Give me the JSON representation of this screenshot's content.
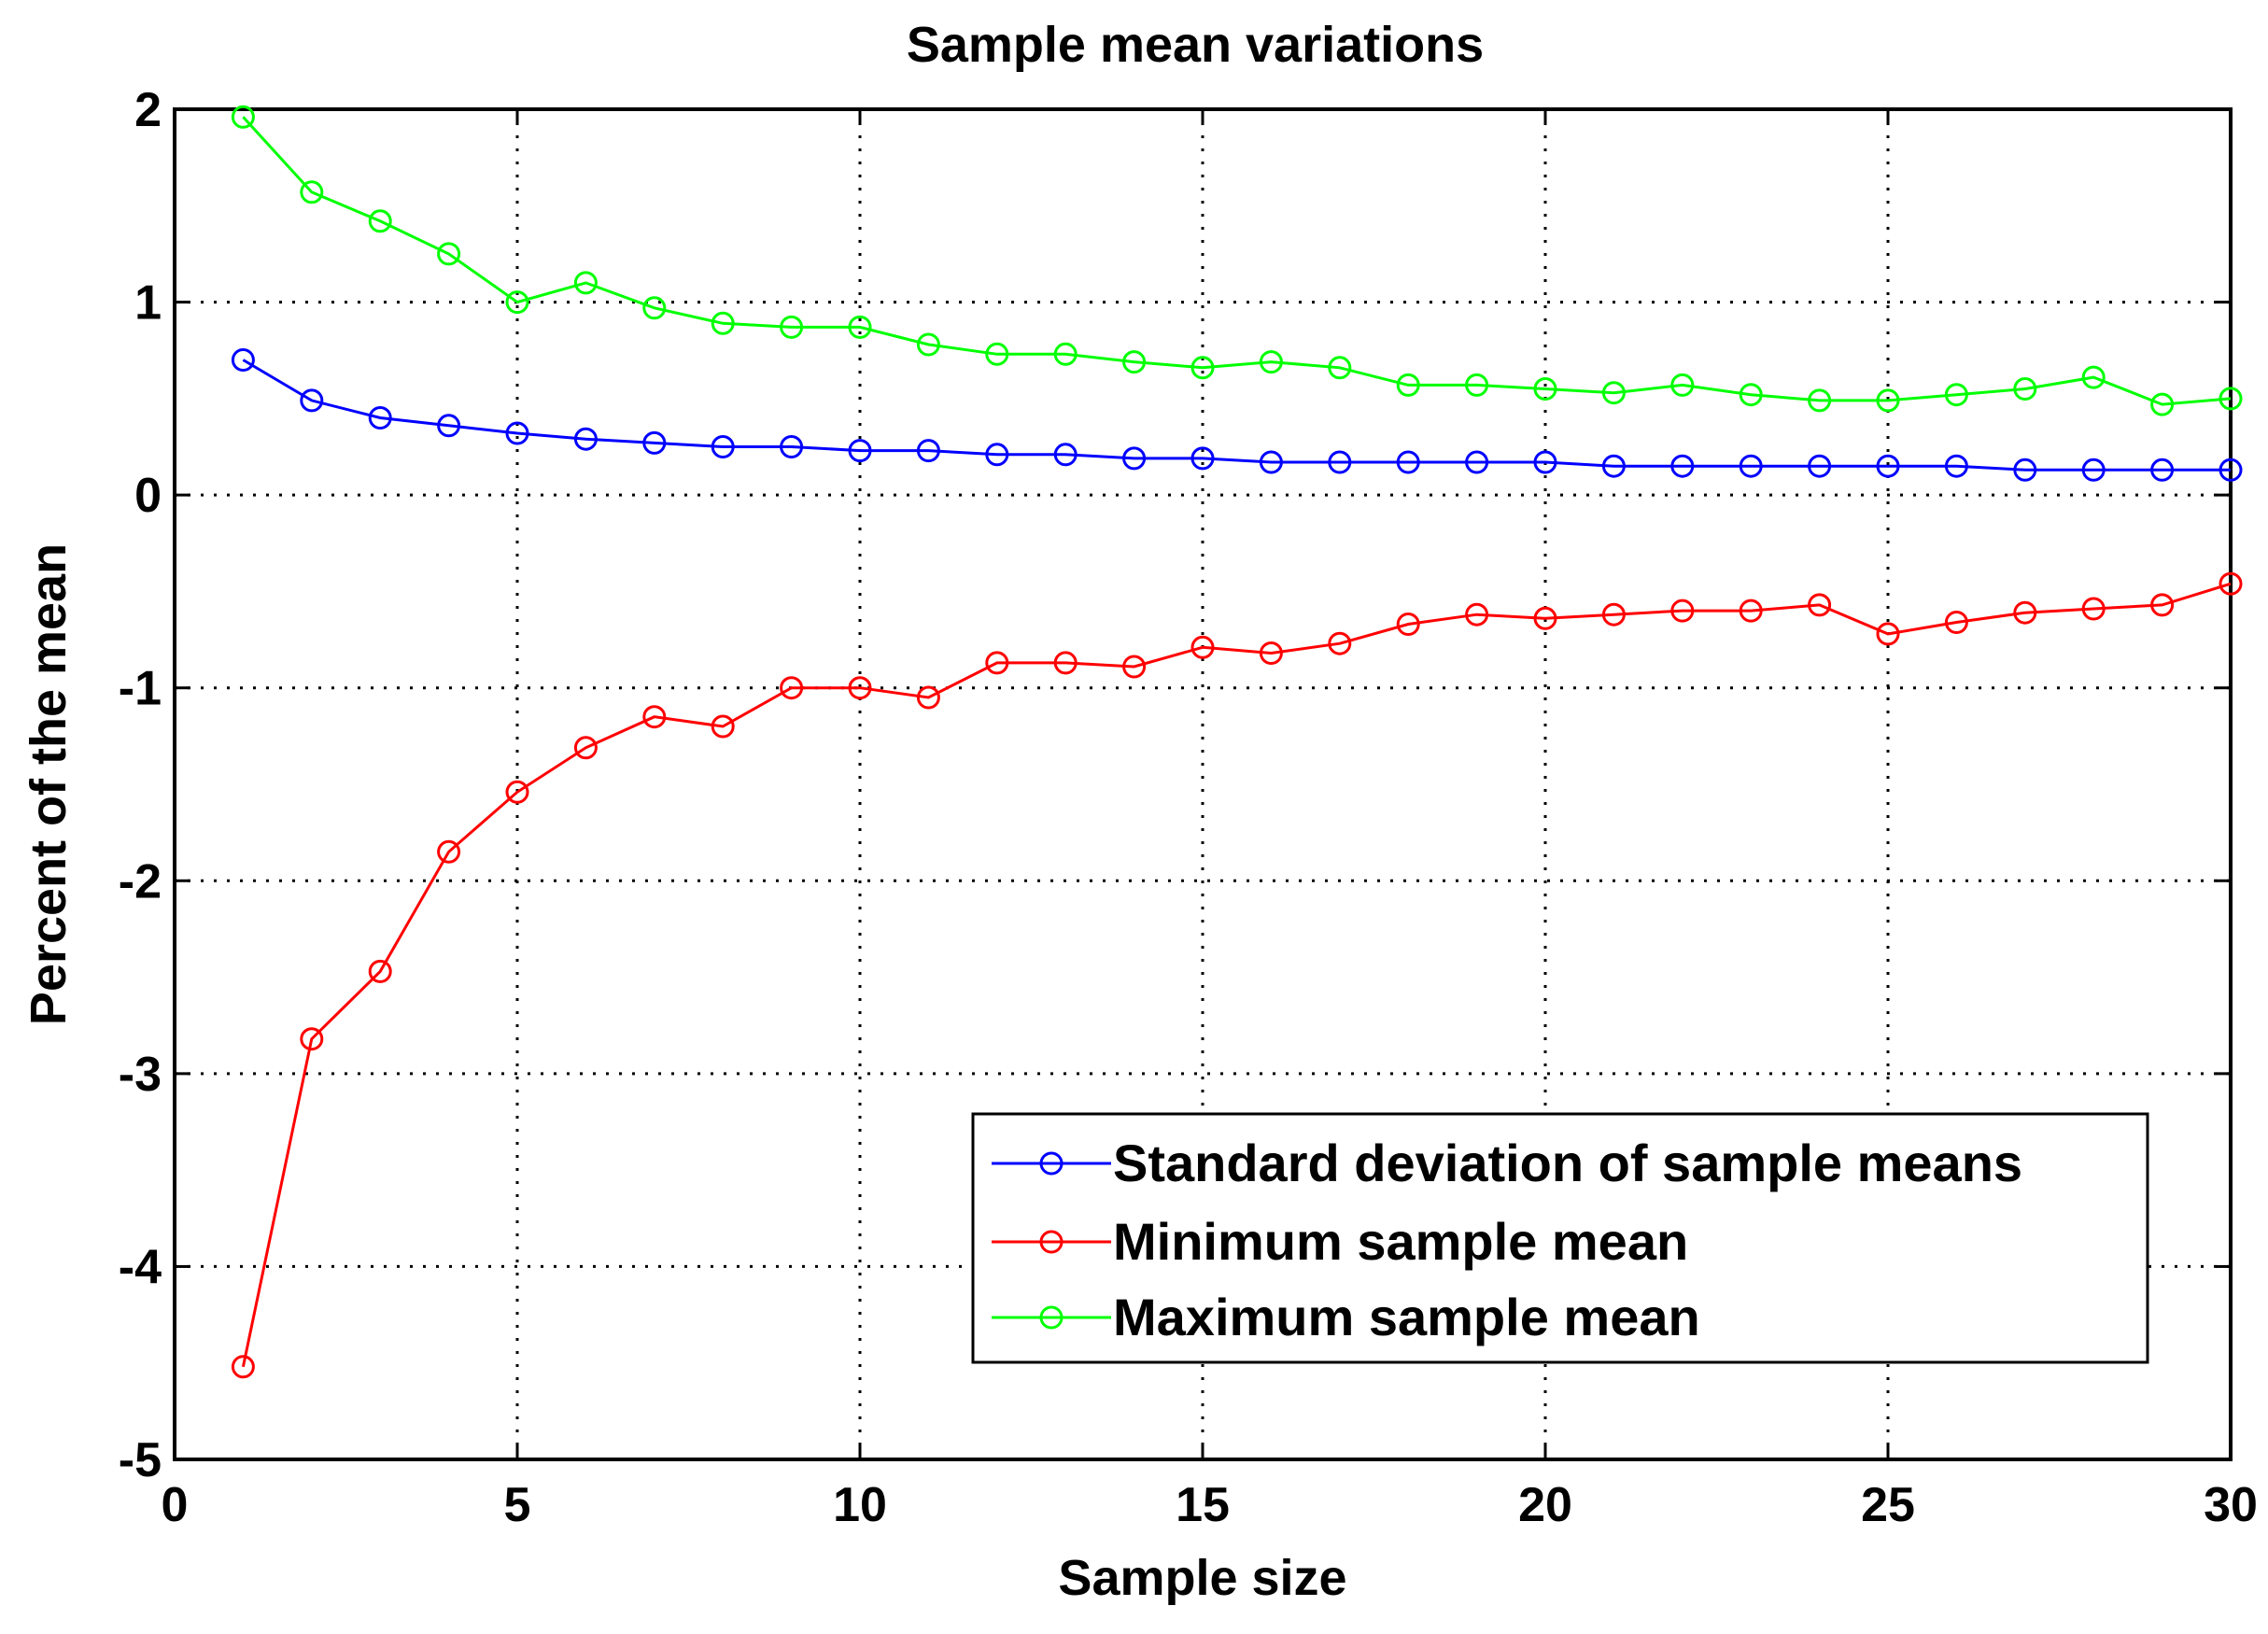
{
  "chart_data": {
    "type": "line",
    "title": "Sample mean variations",
    "xlabel": "Sample size",
    "ylabel": "Percent of the mean",
    "xlim": [
      0,
      30
    ],
    "ylim": [
      -5,
      2
    ],
    "xticks": [
      0,
      5,
      10,
      15,
      20,
      25,
      30
    ],
    "yticks": [
      -5,
      -4,
      -3,
      -2,
      -1,
      0,
      1,
      2
    ],
    "xtick_labels": [
      "0",
      "5",
      "10",
      "15",
      "20",
      "25",
      "30"
    ],
    "ytick_labels": [
      "-5",
      "-4",
      "-3",
      "-2",
      "-1",
      "0",
      "1",
      "2"
    ],
    "grid": true,
    "legend_position": "bottom-right",
    "x": [
      1,
      2,
      3,
      4,
      5,
      6,
      7,
      8,
      9,
      10,
      11,
      12,
      13,
      14,
      15,
      16,
      17,
      18,
      19,
      20,
      21,
      22,
      23,
      24,
      25,
      26,
      27,
      28,
      29,
      30
    ],
    "series": [
      {
        "name": "Standard deviation of sample means",
        "color": "#0000ff",
        "marker": "circle",
        "values": [
          0.7,
          0.49,
          0.4,
          0.36,
          0.32,
          0.29,
          0.27,
          0.25,
          0.25,
          0.23,
          0.23,
          0.21,
          0.21,
          0.19,
          0.19,
          0.17,
          0.17,
          0.17,
          0.17,
          0.17,
          0.15,
          0.15,
          0.15,
          0.15,
          0.15,
          0.15,
          0.13,
          0.13,
          0.13,
          0.13
        ]
      },
      {
        "name": "Minimum sample mean",
        "color": "#ff0000",
        "marker": "circle",
        "values": [
          -4.52,
          -2.82,
          -2.47,
          -1.85,
          -1.54,
          -1.31,
          -1.15,
          -1.2,
          -1.0,
          -1.0,
          -1.05,
          -0.87,
          -0.87,
          -0.89,
          -0.79,
          -0.82,
          -0.77,
          -0.67,
          -0.62,
          -0.64,
          -0.62,
          -0.6,
          -0.6,
          -0.57,
          -0.72,
          -0.66,
          -0.61,
          -0.59,
          -0.57,
          -0.46
        ]
      },
      {
        "name": "Maximum sample mean",
        "color": "#00ff00",
        "marker": "circle",
        "values": [
          1.96,
          1.57,
          1.42,
          1.25,
          1.0,
          1.1,
          0.97,
          0.89,
          0.87,
          0.87,
          0.78,
          0.73,
          0.73,
          0.69,
          0.66,
          0.69,
          0.66,
          0.57,
          0.57,
          0.55,
          0.53,
          0.57,
          0.52,
          0.49,
          0.49,
          0.52,
          0.55,
          0.61,
          0.47,
          0.5
        ]
      }
    ]
  }
}
